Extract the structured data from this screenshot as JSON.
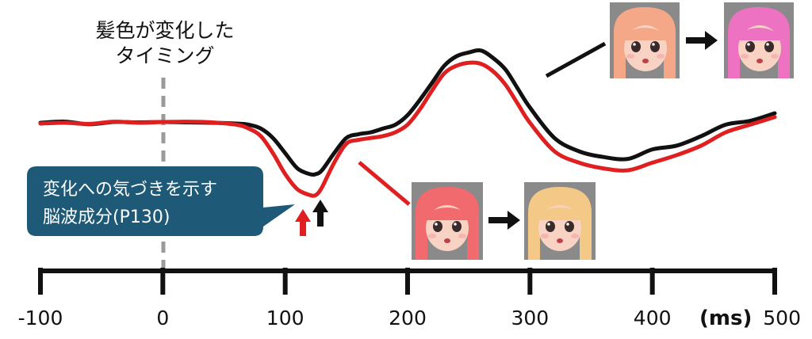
{
  "chart_data": {
    "type": "line",
    "title": "",
    "xlabel": "",
    "ylabel": "",
    "x_unit_label": "(ms)",
    "xlim": [
      -100,
      500
    ],
    "xticks": [
      -100,
      0,
      100,
      200,
      300,
      400,
      500
    ],
    "y_axis_shown": false,
    "grid": false,
    "series": [
      {
        "color": "#111111",
        "x": [
          -100,
          -80,
          -60,
          -40,
          -20,
          0,
          20,
          40,
          60,
          70,
          80,
          90,
          100,
          110,
          120,
          125,
          130,
          140,
          150,
          160,
          170,
          180,
          190,
          200,
          210,
          220,
          230,
          240,
          250,
          260,
          270,
          280,
          290,
          300,
          320,
          340,
          360,
          380,
          400,
          420,
          440,
          460,
          480,
          500
        ],
        "y": [
          0.0,
          0.03,
          -0.04,
          0.02,
          0.01,
          0.02,
          0.01,
          0.0,
          -0.02,
          -0.05,
          -0.15,
          -0.4,
          -0.8,
          -1.2,
          -1.35,
          -1.35,
          -1.25,
          -0.8,
          -0.4,
          -0.3,
          -0.25,
          -0.15,
          -0.05,
          0.2,
          0.6,
          1.05,
          1.5,
          1.75,
          1.85,
          1.9,
          1.7,
          1.4,
          0.9,
          0.4,
          -0.4,
          -0.75,
          -0.9,
          -0.95,
          -0.7,
          -0.6,
          -0.35,
          -0.05,
          0.05,
          0.25
        ]
      },
      {
        "color": "#e02020",
        "x": [
          -100,
          -80,
          -60,
          -40,
          -20,
          0,
          20,
          40,
          60,
          70,
          80,
          90,
          100,
          110,
          120,
          125,
          130,
          140,
          150,
          160,
          170,
          180,
          190,
          200,
          210,
          220,
          230,
          240,
          250,
          260,
          270,
          280,
          290,
          300,
          320,
          340,
          360,
          380,
          400,
          420,
          440,
          460,
          480,
          500
        ],
        "y": [
          -0.02,
          0.0,
          -0.03,
          0.03,
          0.0,
          0.02,
          0.03,
          0.01,
          -0.05,
          -0.15,
          -0.35,
          -0.8,
          -1.35,
          -1.75,
          -1.9,
          -1.9,
          -1.7,
          -1.05,
          -0.55,
          -0.45,
          -0.4,
          -0.35,
          -0.25,
          -0.05,
          0.35,
          0.85,
          1.3,
          1.5,
          1.58,
          1.55,
          1.35,
          1.0,
          0.5,
          0.0,
          -0.75,
          -1.05,
          -1.2,
          -1.25,
          -1.05,
          -0.85,
          -0.6,
          -0.25,
          -0.05,
          0.15
        ]
      }
    ],
    "annotations": {
      "onset_label_line1": "髪色が変化した",
      "onset_label_line2": "タイミング",
      "callout_line1": "変化への気づきを示す",
      "callout_line2": "脳波成分(P130)"
    }
  },
  "colors": {
    "black_line": "#111111",
    "red_line": "#e02020",
    "callout_bg": "#1e5a78",
    "dashed_marker": "#9a9a9a",
    "red_hair": "#f06a6e",
    "blonde_hair": "#f4c987",
    "peach_hair": "#f4a887",
    "pink_hair": "#ee72c2"
  },
  "images": [
    {
      "name": "doll-red-hair-image",
      "hair": "red"
    },
    {
      "name": "doll-blonde-hair-image",
      "hair": "blonde"
    },
    {
      "name": "doll-peach-hair-image",
      "hair": "peach"
    },
    {
      "name": "doll-pink-hair-image",
      "hair": "pink"
    }
  ]
}
